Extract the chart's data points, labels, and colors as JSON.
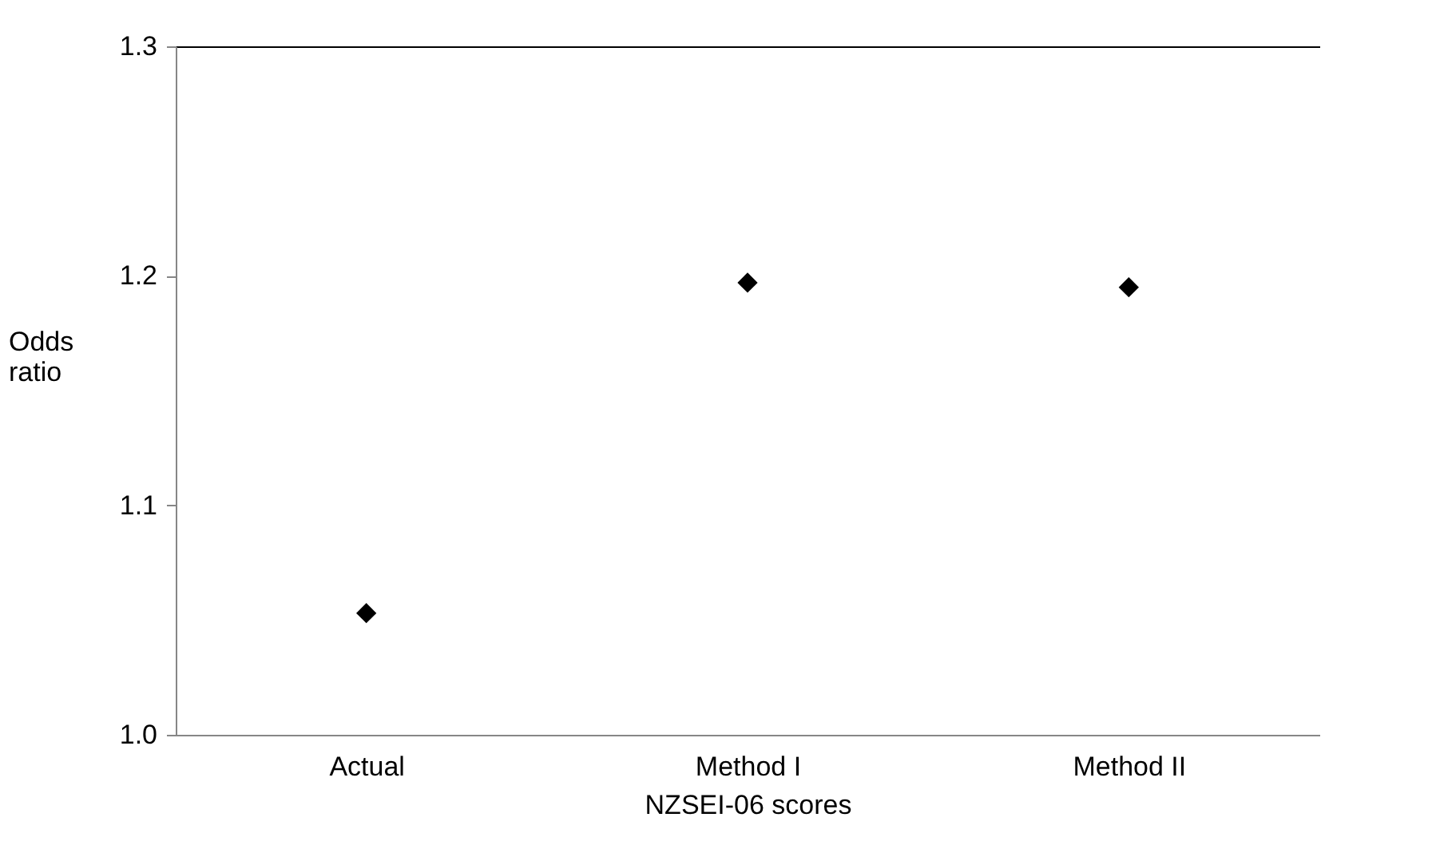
{
  "chart_data": {
    "type": "scatter",
    "xlabel": "NZSEI-06 scores",
    "ylabel": "Odds ratio",
    "categories": [
      "Actual",
      "Method I",
      "Method II"
    ],
    "series": [
      {
        "color": "#000000",
        "values": [
          1.053,
          1.197,
          1.195
        ]
      }
    ],
    "ylim": [
      1.0,
      1.3
    ],
    "yticks": [
      {
        "value": 1.0,
        "label": "1.0"
      },
      1.1,
      1.2,
      1.3
    ],
    "marker": "diamond"
  }
}
